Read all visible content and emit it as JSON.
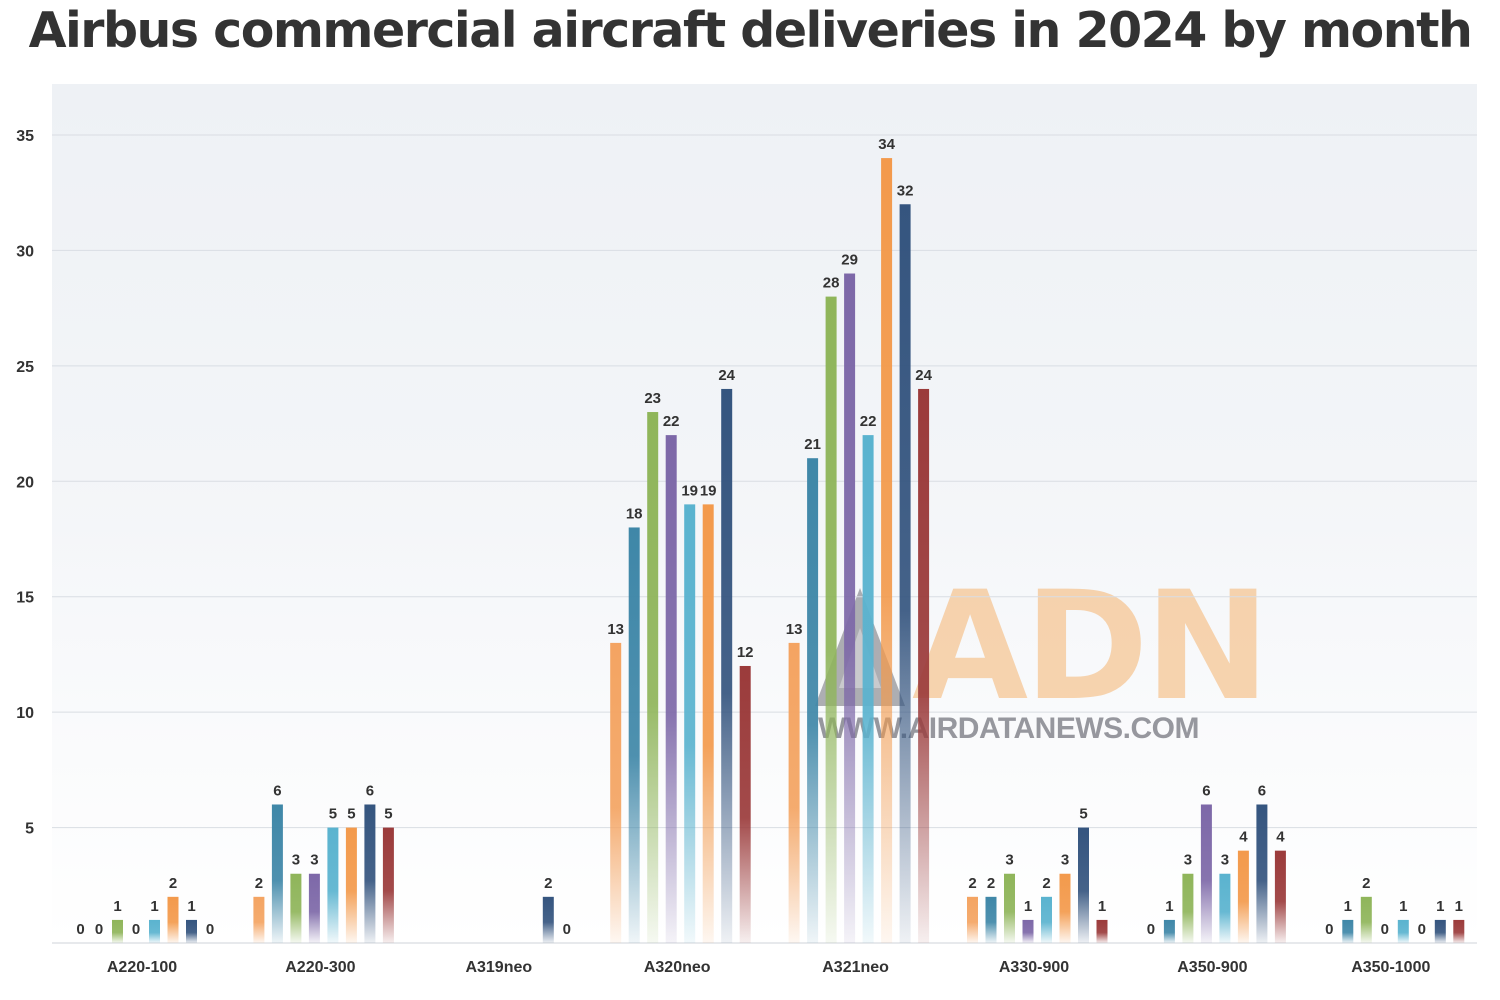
{
  "page": {
    "title": "Airbus commercial aircraft deliveries in 2024 by month"
  },
  "watermark": {
    "letters": "ADN",
    "url": "WWW.AIRDATANEWS.COM",
    "text_color": "#f4a450"
  },
  "chart_data": {
    "type": "bar",
    "title": "Airbus commercial aircraft deliveries in 2024 by month",
    "xlabel": "",
    "ylabel": "",
    "ylim": [
      0,
      37
    ],
    "yticks": [
      5,
      10,
      15,
      20,
      25,
      30,
      35
    ],
    "grid": true,
    "categories": [
      "A220-100",
      "A220-300",
      "A319neo",
      "A320neo",
      "A321neo",
      "A330-900",
      "A350-900",
      "A350-1000"
    ],
    "series": [
      {
        "color": "#f4a462",
        "values": [
          0,
          2,
          null,
          13,
          13,
          2,
          0,
          0
        ]
      },
      {
        "color": "#3f87a8",
        "values": [
          0,
          6,
          null,
          18,
          21,
          2,
          1,
          1
        ]
      },
      {
        "color": "#8fb55a",
        "values": [
          1,
          3,
          null,
          23,
          28,
          3,
          3,
          2
        ]
      },
      {
        "color": "#7d68a8",
        "values": [
          0,
          3,
          null,
          22,
          29,
          1,
          6,
          0
        ]
      },
      {
        "color": "#5ab3cf",
        "values": [
          1,
          5,
          null,
          19,
          22,
          2,
          3,
          1
        ]
      },
      {
        "color": "#f39a4c",
        "values": [
          2,
          5,
          null,
          19,
          34,
          3,
          4,
          0
        ]
      },
      {
        "color": "#35557f",
        "values": [
          1,
          6,
          2,
          24,
          32,
          5,
          6,
          1
        ]
      },
      {
        "color": "#9b3b3b",
        "values": [
          0,
          5,
          0,
          12,
          24,
          1,
          4,
          1
        ]
      }
    ]
  }
}
